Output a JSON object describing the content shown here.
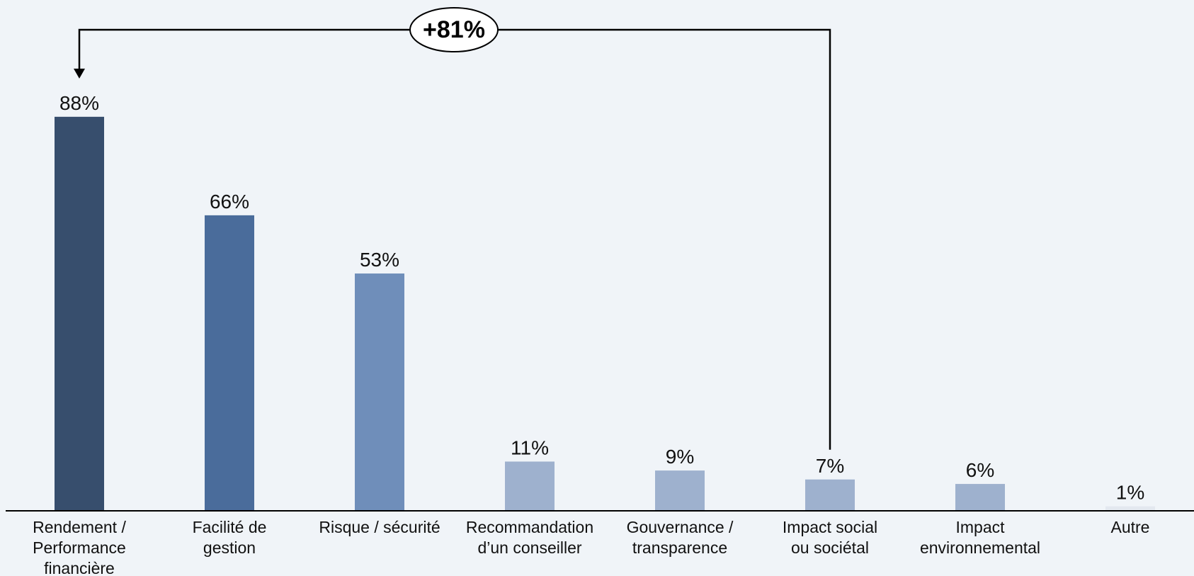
{
  "chart_data": {
    "type": "bar",
    "categories": [
      [
        "Rendement /",
        "Performance",
        "financière"
      ],
      [
        "Facilité de",
        "gestion"
      ],
      [
        "Risque / sécurité"
      ],
      [
        "Recommandation",
        "d’un conseiller"
      ],
      [
        "Gouvernance /",
        "transparence"
      ],
      [
        "Impact social",
        "ou sociétal"
      ],
      [
        "Impact",
        "environnemental"
      ],
      [
        "Autre"
      ]
    ],
    "values": [
      88,
      66,
      53,
      11,
      9,
      7,
      6,
      1
    ],
    "value_labels": [
      "88%",
      "66%",
      "53%",
      "11%",
      "9%",
      "7%",
      "6%",
      "1%"
    ],
    "colors": [
      "#374e6d",
      "#4a6c9b",
      "#6f8eba",
      "#9eb1ce",
      "#9eb1ce",
      "#9eb1ce",
      "#9eb1ce",
      "#e3e8ef"
    ],
    "ylim": [
      0,
      100
    ],
    "title": "",
    "xlabel": "",
    "ylabel": "",
    "grid": false,
    "legend": "none",
    "annotation": {
      "text": "+81%",
      "from_category_index": 5,
      "to_category_index": 0
    }
  }
}
